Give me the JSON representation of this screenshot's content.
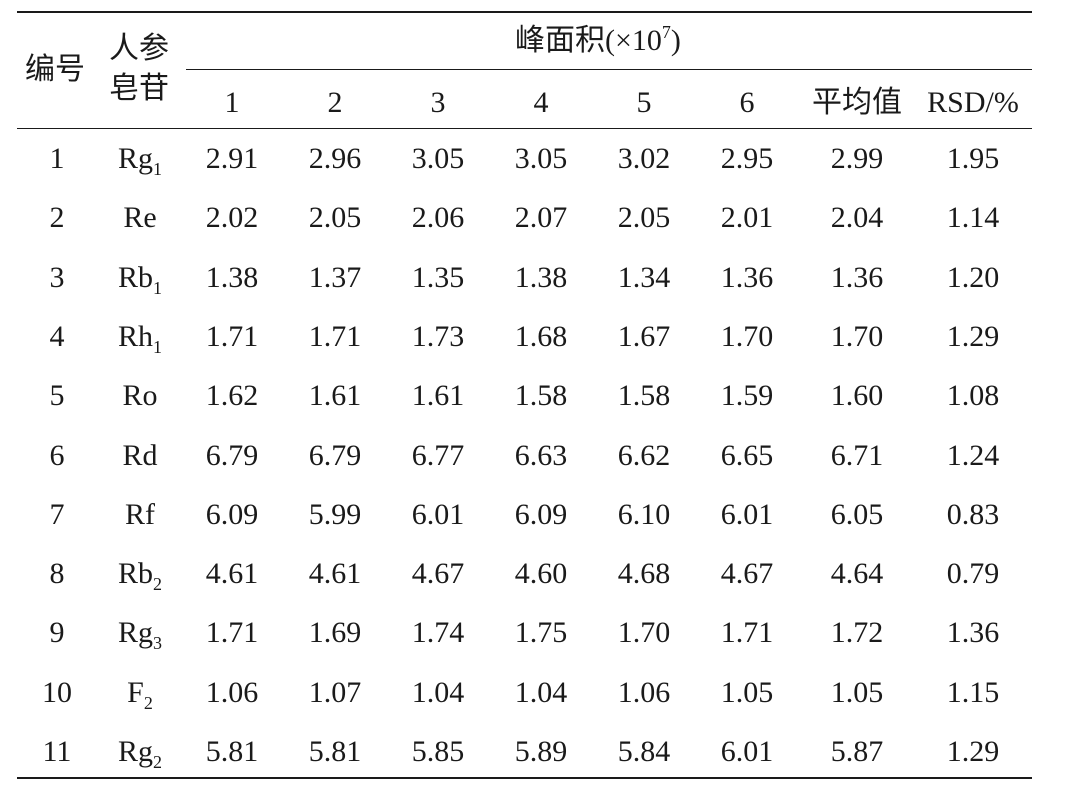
{
  "table": {
    "header": {
      "col_no": "编号",
      "col_ginsenoside_line1": "人参",
      "col_ginsenoside_line2": "皂苷",
      "group_title_prefix": "峰面积(×10",
      "group_title_exp": "7",
      "group_title_suffix": ")",
      "sub_columns": [
        "1",
        "2",
        "3",
        "4",
        "5",
        "6",
        "平均值",
        "RSD/%"
      ]
    },
    "rows": [
      {
        "no": "1",
        "name": "Rg",
        "sub": "1",
        "values": [
          "2.91",
          "2.96",
          "3.05",
          "3.05",
          "3.02",
          "2.95",
          "2.99",
          "1.95"
        ]
      },
      {
        "no": "2",
        "name": "Re",
        "sub": "",
        "values": [
          "2.02",
          "2.05",
          "2.06",
          "2.07",
          "2.05",
          "2.01",
          "2.04",
          "1.14"
        ]
      },
      {
        "no": "3",
        "name": "Rb",
        "sub": "1",
        "values": [
          "1.38",
          "1.37",
          "1.35",
          "1.38",
          "1.34",
          "1.36",
          "1.36",
          "1.20"
        ]
      },
      {
        "no": "4",
        "name": "Rh",
        "sub": "1",
        "values": [
          "1.71",
          "1.71",
          "1.73",
          "1.68",
          "1.67",
          "1.70",
          "1.70",
          "1.29"
        ]
      },
      {
        "no": "5",
        "name": "Ro",
        "sub": "",
        "values": [
          "1.62",
          "1.61",
          "1.61",
          "1.58",
          "1.58",
          "1.59",
          "1.60",
          "1.08"
        ]
      },
      {
        "no": "6",
        "name": "Rd",
        "sub": "",
        "values": [
          "6.79",
          "6.79",
          "6.77",
          "6.63",
          "6.62",
          "6.65",
          "6.71",
          "1.24"
        ]
      },
      {
        "no": "7",
        "name": "Rf",
        "sub": "",
        "values": [
          "6.09",
          "5.99",
          "6.01",
          "6.09",
          "6.10",
          "6.01",
          "6.05",
          "0.83"
        ]
      },
      {
        "no": "8",
        "name": "Rb",
        "sub": "2",
        "values": [
          "4.61",
          "4.61",
          "4.67",
          "4.60",
          "4.68",
          "4.67",
          "4.64",
          "0.79"
        ]
      },
      {
        "no": "9",
        "name": "Rg",
        "sub": "3",
        "values": [
          "1.71",
          "1.69",
          "1.74",
          "1.75",
          "1.70",
          "1.71",
          "1.72",
          "1.36"
        ]
      },
      {
        "no": "10",
        "name": "F",
        "sub": "2",
        "values": [
          "1.06",
          "1.07",
          "1.04",
          "1.04",
          "1.06",
          "1.05",
          "1.05",
          "1.15"
        ]
      },
      {
        "no": "11",
        "name": "Rg",
        "sub": "2",
        "values": [
          "5.81",
          "5.81",
          "5.85",
          "5.89",
          "5.84",
          "6.01",
          "5.87",
          "1.29"
        ]
      }
    ]
  }
}
